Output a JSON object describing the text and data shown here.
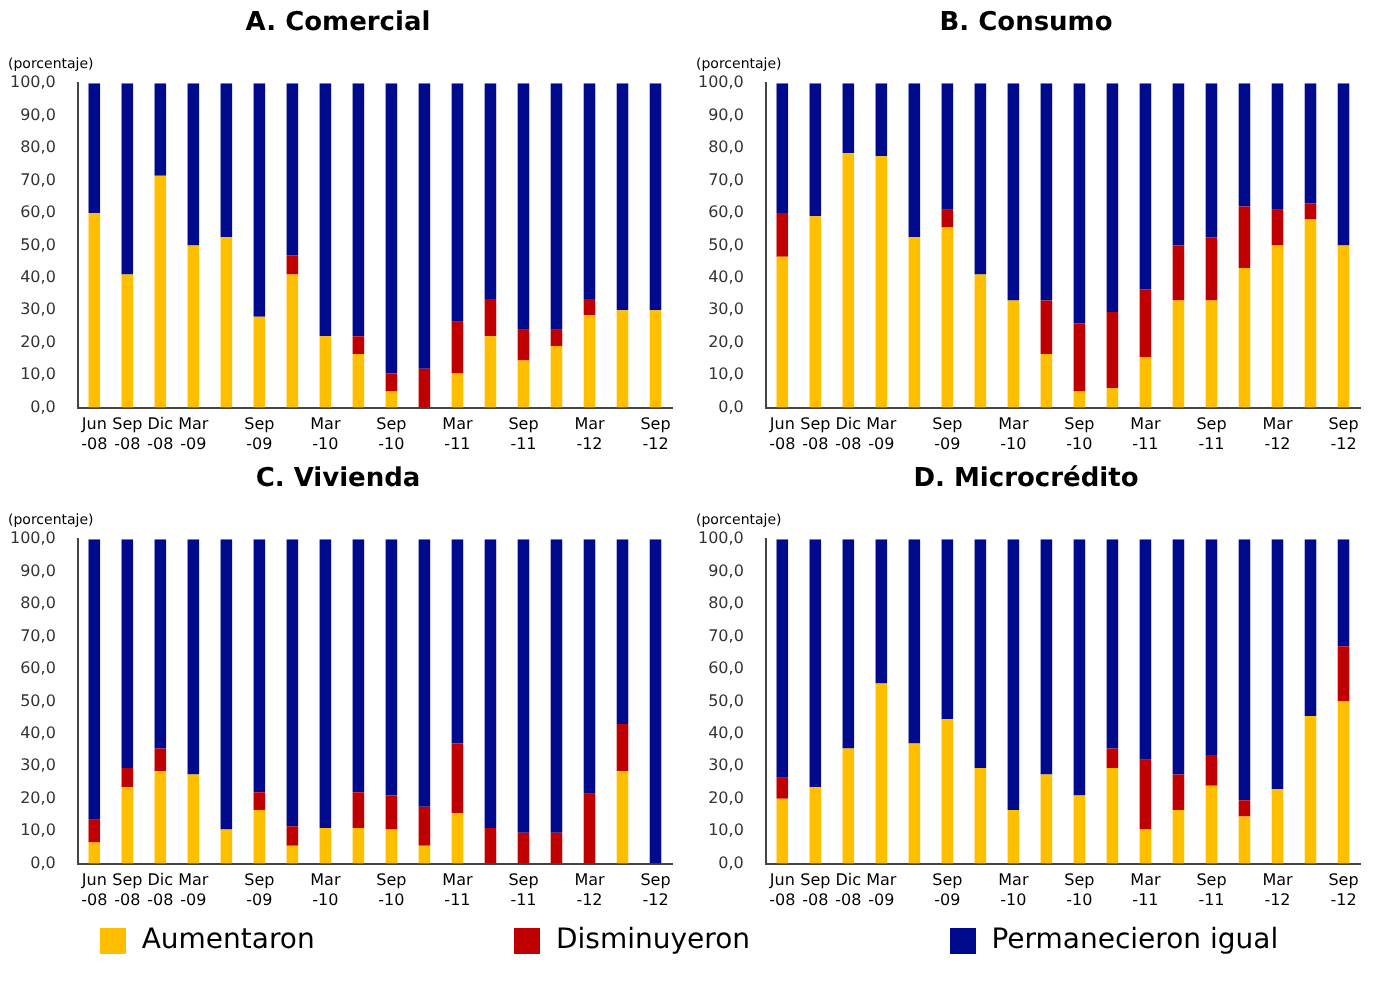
{
  "chart_data": [
    {
      "type": "bar",
      "title": "A. Comercial",
      "ylabel": "(porcentaje)",
      "stacked": true,
      "grid": false,
      "categories": [
        "Jun -08",
        "Sep -08",
        "Dic -08",
        "Mar -09",
        null,
        "Sep -09",
        null,
        "Mar -10",
        null,
        "Sep -10",
        null,
        "Mar -11",
        null,
        "Sep -11",
        null,
        "Mar -12",
        null,
        "Sep -12"
      ],
      "ylim": [
        0,
        100
      ],
      "yticks": [
        {
          "value": 0,
          "label": "0,0"
        },
        {
          "value": 10,
          "label": "10,0"
        },
        {
          "value": 20,
          "label": "20,0"
        },
        {
          "value": 30,
          "label": "30,0"
        },
        {
          "value": 40,
          "label": "40,0"
        },
        {
          "value": 50,
          "label": "50,0"
        },
        {
          "value": 60,
          "label": "60,0"
        },
        {
          "value": 70,
          "label": "70,0"
        },
        {
          "value": 80,
          "label": "80,0"
        },
        {
          "value": 90,
          "label": "90,0"
        },
        {
          "value": 100,
          "label": "100,0"
        }
      ],
      "series": [
        {
          "color": "#ffbf00",
          "values": [
            60,
            41,
            71.5,
            50,
            52.5,
            28,
            41,
            22,
            16.5,
            5,
            0,
            10.5,
            22,
            14.5,
            19,
            28.5,
            30,
            30
          ]
        },
        {
          "color": "#c00000",
          "values": [
            0,
            0,
            0,
            0,
            0,
            0,
            6,
            0,
            5.5,
            5.5,
            12,
            16,
            11.5,
            9.5,
            5,
            5,
            0,
            0
          ]
        },
        {
          "color": "#000a8c",
          "values": [
            40,
            59,
            28.5,
            50,
            47.5,
            72,
            53,
            78,
            78,
            89.5,
            88,
            73.5,
            66.5,
            76,
            76,
            66.5,
            70,
            70
          ]
        }
      ]
    },
    {
      "type": "bar",
      "title": "B. Consumo",
      "ylabel": "(porcentaje)",
      "stacked": true,
      "grid": false,
      "categories": [
        "Jun -08",
        "Sep -08",
        "Dic -08",
        "Mar -09",
        null,
        "Sep -09",
        null,
        "Mar -10",
        null,
        "Sep -10",
        null,
        "Mar -11",
        null,
        "Sep -11",
        null,
        "Mar -12",
        null,
        "Sep -12"
      ],
      "ylim": [
        0,
        100
      ],
      "yticks": [
        {
          "value": 0,
          "label": "0,0"
        },
        {
          "value": 10,
          "label": "10,0"
        },
        {
          "value": 20,
          "label": "20,0"
        },
        {
          "value": 30,
          "label": "30,0"
        },
        {
          "value": 40,
          "label": "40,0"
        },
        {
          "value": 50,
          "label": "50,0"
        },
        {
          "value": 60,
          "label": "60,0"
        },
        {
          "value": 70,
          "label": "70,0"
        },
        {
          "value": 80,
          "label": "80,0"
        },
        {
          "value": 90,
          "label": "90,0"
        },
        {
          "value": 100,
          "label": "100,0"
        }
      ],
      "series": [
        {
          "color": "#ffbf00",
          "values": [
            46.5,
            59,
            78.5,
            77.5,
            52.5,
            55.5,
            41,
            33,
            16.5,
            5,
            6,
            15.5,
            33,
            33,
            43,
            50,
            58,
            50
          ]
        },
        {
          "color": "#c00000",
          "values": [
            13.5,
            0,
            0,
            0,
            0,
            5.5,
            0,
            0,
            16.5,
            21,
            23.5,
            21,
            17,
            19.5,
            19,
            11,
            5,
            0
          ]
        },
        {
          "color": "#000a8c",
          "values": [
            40,
            41,
            21.5,
            22.5,
            47.5,
            39,
            59,
            67,
            67,
            74,
            70.5,
            63.5,
            50,
            47.5,
            38,
            39,
            37,
            50
          ]
        }
      ]
    },
    {
      "type": "bar",
      "title": "C. Vivienda",
      "ylabel": "(porcentaje)",
      "stacked": true,
      "grid": false,
      "legend": "bottom",
      "categories": [
        "Jun -08",
        "Sep -08",
        "Dic -08",
        "Mar -09",
        null,
        "Sep -09",
        null,
        "Mar -10",
        null,
        "Sep -10",
        null,
        "Mar -11",
        null,
        "Sep -11",
        null,
        "Mar -12",
        null,
        "Sep -12"
      ],
      "ylim": [
        0,
        100
      ],
      "yticks": [
        {
          "value": 0,
          "label": "0,0"
        },
        {
          "value": 10,
          "label": "10,0"
        },
        {
          "value": 20,
          "label": "20,0"
        },
        {
          "value": 30,
          "label": "30,0"
        },
        {
          "value": 40,
          "label": "40,0"
        },
        {
          "value": 50,
          "label": "50,0"
        },
        {
          "value": 60,
          "label": "60,0"
        },
        {
          "value": 70,
          "label": "70,0"
        },
        {
          "value": 80,
          "label": "80,0"
        },
        {
          "value": 90,
          "label": "90,0"
        },
        {
          "value": 100,
          "label": "100,0"
        }
      ],
      "series": [
        {
          "name": "Aumentaron",
          "color": "#ffbf00",
          "values": [
            6.5,
            23.5,
            28.5,
            27.5,
            10.5,
            16.5,
            5.5,
            11,
            11,
            10.5,
            5.5,
            15.5,
            0,
            0,
            0,
            0,
            28.5,
            0
          ]
        },
        {
          "name": "Disminuyeron",
          "color": "#c00000",
          "values": [
            7,
            6,
            7,
            0,
            0,
            5.5,
            6,
            0,
            11,
            10.5,
            12,
            21.5,
            11,
            9.5,
            9.5,
            21.5,
            14.5,
            0
          ]
        },
        {
          "name": "Permanecieron igual",
          "color": "#000a8c",
          "values": [
            86.5,
            70.5,
            64.5,
            72.5,
            89.5,
            78,
            88.5,
            89,
            78,
            79,
            82.5,
            63,
            89,
            90.5,
            90.5,
            78.5,
            57,
            100
          ]
        }
      ]
    },
    {
      "type": "bar",
      "title": "D. Microcrédito",
      "ylabel": "(porcentaje)",
      "stacked": true,
      "grid": false,
      "categories": [
        "Jun -08",
        "Sep -08",
        "Dic -08",
        "Mar -09",
        null,
        "Sep -09",
        null,
        "Mar -10",
        null,
        "Sep -10",
        null,
        "Mar -11",
        null,
        "Sep -11",
        null,
        "Mar -12",
        null,
        "Sep -12"
      ],
      "ylim": [
        0,
        100
      ],
      "yticks": [
        {
          "value": 0,
          "label": "0,0"
        },
        {
          "value": 10,
          "label": "10,0"
        },
        {
          "value": 20,
          "label": "20,0"
        },
        {
          "value": 30,
          "label": "30,0"
        },
        {
          "value": 40,
          "label": "40,0"
        },
        {
          "value": 50,
          "label": "50,0"
        },
        {
          "value": 60,
          "label": "60,0"
        },
        {
          "value": 70,
          "label": "70,0"
        },
        {
          "value": 80,
          "label": "80,0"
        },
        {
          "value": 90,
          "label": "90,0"
        },
        {
          "value": 100,
          "label": "100,0"
        }
      ],
      "series": [
        {
          "color": "#ffbf00",
          "values": [
            20,
            23.5,
            35.5,
            55.5,
            37,
            44.5,
            29.5,
            16.5,
            27.5,
            21,
            29.5,
            10.5,
            16.5,
            24,
            14.5,
            23,
            45.5,
            50
          ]
        },
        {
          "color": "#c00000",
          "values": [
            6.5,
            0,
            0,
            0,
            0,
            0,
            0,
            0,
            0,
            0,
            6,
            21.5,
            11,
            9.5,
            5,
            0,
            0,
            17
          ]
        },
        {
          "color": "#000a8c",
          "values": [
            73.5,
            76.5,
            64.5,
            44.5,
            63,
            55.5,
            70.5,
            83.5,
            72.5,
            79,
            64.5,
            68,
            72.5,
            66.5,
            80.5,
            77,
            54.5,
            33
          ]
        }
      ]
    }
  ]
}
